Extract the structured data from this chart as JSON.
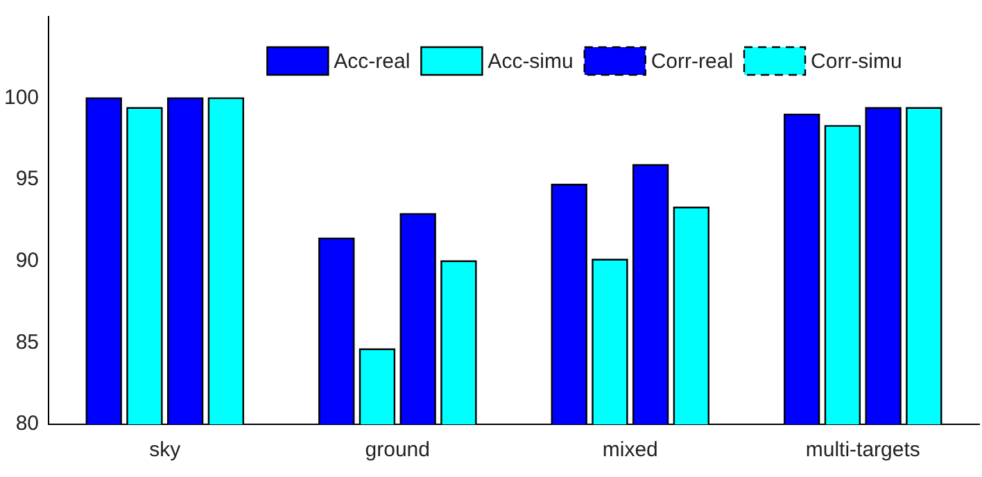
{
  "chart_data": {
    "type": "bar",
    "categories": [
      "sky",
      "ground",
      "mixed",
      "multi-targets"
    ],
    "series": [
      {
        "name": "Acc-real",
        "color": "#0000ff",
        "values": [
          100,
          91.4,
          94.7,
          99.0
        ]
      },
      {
        "name": "Acc-simu",
        "color": "#00ffff",
        "values": [
          99.4,
          84.6,
          90.1,
          98.3
        ]
      },
      {
        "name": "Corr-real",
        "color": "#0000ff",
        "line_style": "dashed",
        "values": [
          100,
          92.9,
          95.9,
          99.4
        ]
      },
      {
        "name": "Corr-simu",
        "color": "#00ffff",
        "line_style": "dashed",
        "values": [
          100,
          90.0,
          93.3,
          99.4
        ]
      }
    ],
    "ylim": [
      80,
      105
    ],
    "yticks": [
      80,
      85,
      90,
      95,
      100
    ],
    "grid": false,
    "legend": "top"
  }
}
